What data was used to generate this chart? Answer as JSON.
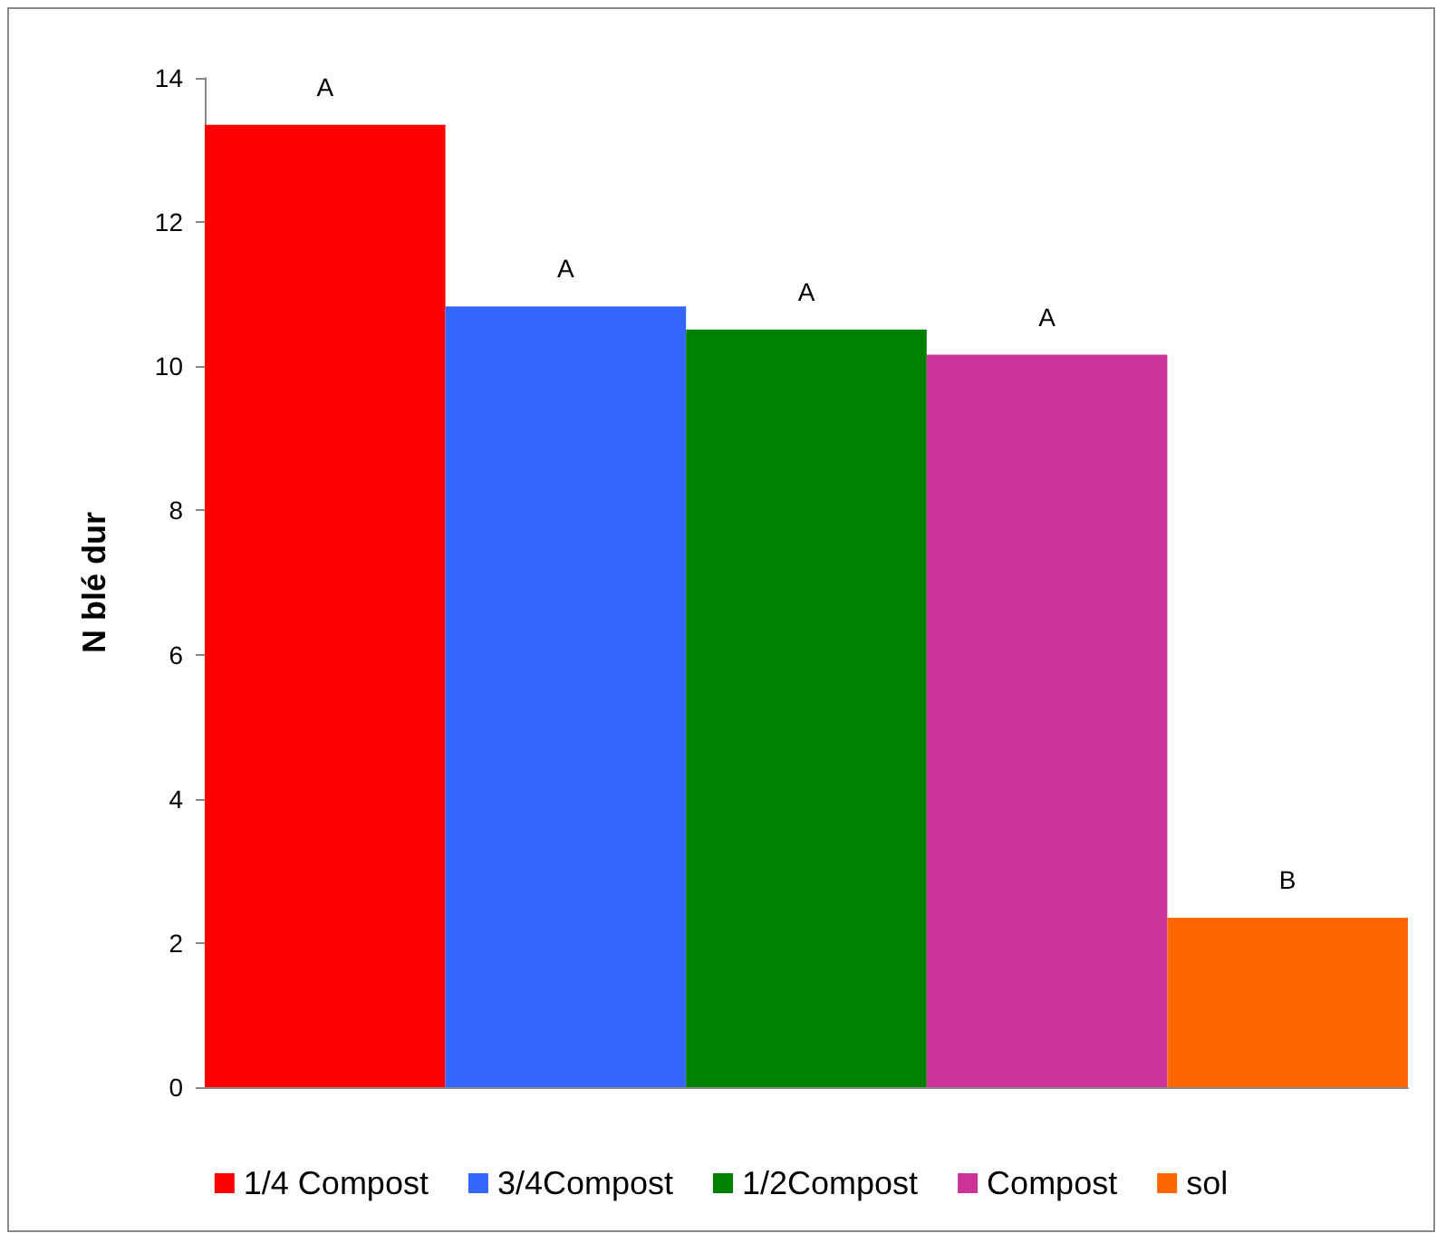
{
  "chart_data": {
    "type": "bar",
    "ylabel": "N blé dur",
    "categories": [
      null,
      null,
      null,
      null,
      null
    ],
    "series": [
      {
        "name": "1/4 Compost",
        "color": "#ff0000",
        "values": [
          13.35,
          null,
          null,
          null,
          null
        ],
        "value_labels": [
          "A",
          null,
          null,
          null,
          null
        ]
      },
      {
        "name": "3/4Compost",
        "color": "#3366ff",
        "values": [
          null,
          10.83,
          null,
          null,
          null
        ],
        "value_labels": [
          null,
          "A",
          null,
          null,
          null
        ]
      },
      {
        "name": "1/2Compost",
        "color": "#008000",
        "values": [
          null,
          null,
          10.51,
          null,
          null
        ],
        "value_labels": [
          null,
          null,
          "A",
          null,
          null
        ]
      },
      {
        "name": "Compost",
        "color": "#cc3399",
        "values": [
          null,
          null,
          null,
          10.16,
          null
        ],
        "value_labels": [
          null,
          null,
          null,
          "A",
          null
        ]
      },
      {
        "name": "sol",
        "color": "#ff6600",
        "values": [
          null,
          null,
          null,
          null,
          2.35
        ],
        "value_labels": [
          null,
          null,
          null,
          null,
          "B"
        ]
      }
    ],
    "ylim": [
      0,
      14
    ],
    "yticks": [
      0,
      2,
      4,
      6,
      8,
      10,
      12,
      14
    ],
    "grid": false,
    "legend": "bottom"
  }
}
